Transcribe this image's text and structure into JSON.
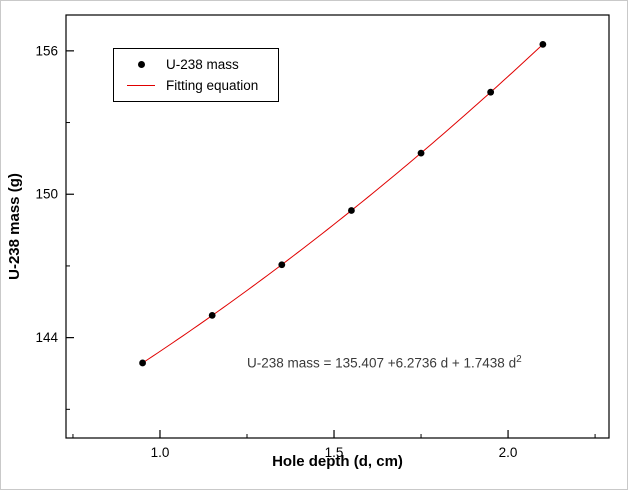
{
  "chart_data": {
    "type": "scatter",
    "title": "",
    "xlabel": "Hole depth (d, cm)",
    "ylabel": "U-238 mass (g)",
    "xlim": [
      0.73,
      2.29
    ],
    "ylim": [
      139.8,
      157.5
    ],
    "grid": false,
    "legend_position": "top-left-inside",
    "x_major_ticks": [
      1.0,
      1.5,
      2.0
    ],
    "x_tick_labels": [
      "1.0",
      "1.5",
      "2.0"
    ],
    "x_minor_ticks": [
      0.75,
      1.25,
      1.75,
      2.25
    ],
    "y_major_ticks": [
      144,
      150,
      156
    ],
    "y_tick_labels": [
      "144",
      "150",
      "156"
    ],
    "y_minor_ticks": [
      141,
      147,
      153
    ],
    "series": [
      {
        "name": "U-238 mass",
        "type": "scatter",
        "marker": "circle",
        "color": "#000000",
        "x": [
          0.95,
          1.15,
          1.35,
          1.55,
          1.75,
          1.95,
          2.1
        ],
        "y": [
          142.94,
          144.93,
          147.05,
          149.32,
          151.72,
          154.27,
          156.27
        ]
      },
      {
        "name": "Fitting equation",
        "type": "line",
        "color": "#e00000",
        "fit_coefficients": {
          "intercept": 135.407,
          "linear": 6.2736,
          "quadratic": 1.7438
        },
        "x_range": [
          0.95,
          2.1
        ]
      }
    ],
    "annotation": {
      "text": "U-238 mass = 135.407 +6.2736 d + 1.7438 d",
      "exponent": "2"
    }
  }
}
